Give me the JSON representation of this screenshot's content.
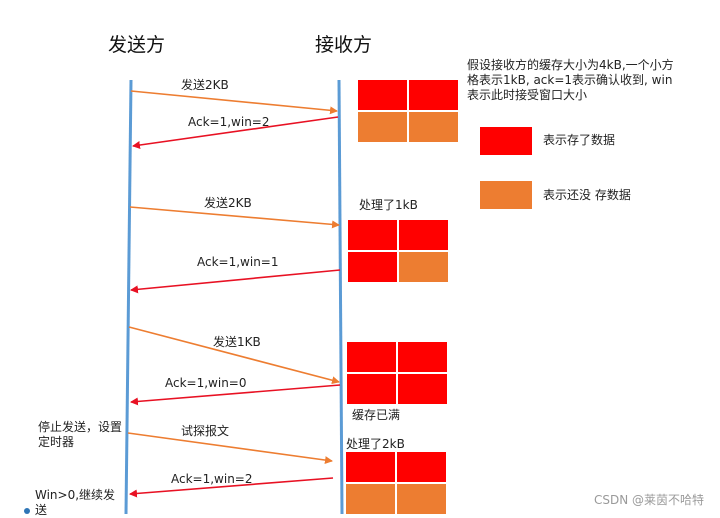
{
  "headers": {
    "sender": "发送方",
    "receiver": "接收方"
  },
  "colors": {
    "timeline": "#5b9bd5",
    "send_arrow": "#ed7d31",
    "ack_arrow": "#e81123",
    "full_cell": "#ff0000",
    "empty_cell": "#ed7d31"
  },
  "note": "假设接收方的缓存大小为4kB,一个小方格表示1kB, ack=1表示确认收到, win表示此时接受窗口大小",
  "legend": {
    "full_label": "表示存了数据",
    "empty_label": "表示还没 存数据"
  },
  "messages": [
    {
      "label": "发送2KB"
    },
    {
      "label": "Ack=1,win=2"
    },
    {
      "label": "发送2KB"
    },
    {
      "label": "Ack=1,win=1"
    },
    {
      "label": "发送1KB"
    },
    {
      "label": "Ack=1,win=0"
    },
    {
      "label": "试探报文"
    },
    {
      "label": "Ack=1,win=2"
    }
  ],
  "receiver_labels": {
    "processed_1": "处理了1kB",
    "buffer_full": "缓存已满",
    "processed_2": "处理了2kB"
  },
  "sender_labels": {
    "stop": "停止发送，设置定时器",
    "resume": "Win>0,继续发送"
  },
  "buffers": [
    {
      "cells": [
        "full",
        "full",
        "empty",
        "empty"
      ]
    },
    {
      "cells": [
        "full",
        "full",
        "full",
        "empty"
      ]
    },
    {
      "cells": [
        "full",
        "full",
        "full",
        "full"
      ]
    },
    {
      "cells": [
        "full",
        "full",
        "empty",
        "empty"
      ]
    }
  ],
  "watermark": "CSDN @莱茵不哈特"
}
